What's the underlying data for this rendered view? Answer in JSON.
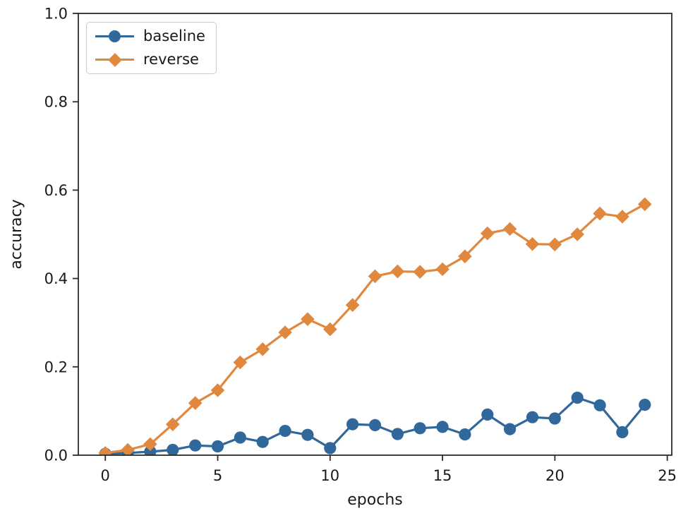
{
  "chart_data": {
    "type": "line",
    "title": "",
    "xlabel": "epochs",
    "ylabel": "accuracy",
    "x": [
      0,
      1,
      2,
      3,
      4,
      5,
      6,
      7,
      8,
      9,
      10,
      11,
      12,
      13,
      14,
      15,
      16,
      17,
      18,
      19,
      20,
      21,
      22,
      23,
      24
    ],
    "xticks": [
      0,
      5,
      10,
      15,
      20,
      25
    ],
    "yticks": [
      0.0,
      0.2,
      0.4,
      0.6,
      0.8,
      1.0
    ],
    "xlim": [
      -1.2,
      25.2
    ],
    "ylim": [
      0,
      1
    ],
    "grid": false,
    "legend_position": "upper-left",
    "axis_color": "#2b2b2b",
    "text_color": "#1a1a1a",
    "series": [
      {
        "name": "baseline",
        "marker": "circle",
        "color": "#31689B",
        "values": [
          0.003,
          0.005,
          0.008,
          0.012,
          0.022,
          0.02,
          0.04,
          0.03,
          0.055,
          0.046,
          0.016,
          0.07,
          0.068,
          0.048,
          0.061,
          0.064,
          0.047,
          0.092,
          0.059,
          0.086,
          0.083,
          0.13,
          0.113,
          0.052,
          0.114
        ]
      },
      {
        "name": "reverse",
        "marker": "diamond",
        "color": "#E0883E",
        "values": [
          0.005,
          0.012,
          0.025,
          0.07,
          0.118,
          0.147,
          0.21,
          0.24,
          0.278,
          0.308,
          0.285,
          0.34,
          0.405,
          0.416,
          0.415,
          0.421,
          0.45,
          0.502,
          0.512,
          0.478,
          0.477,
          0.5,
          0.547,
          0.54,
          0.568
        ]
      }
    ]
  }
}
